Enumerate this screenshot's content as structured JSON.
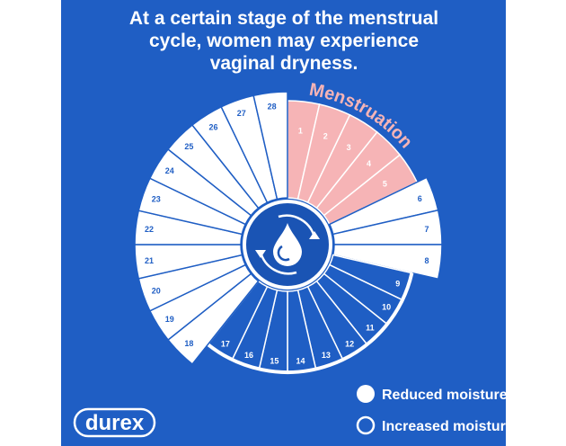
{
  "header": {
    "title_lines": [
      "At a certain stage of the menstrual",
      "cycle, women may experience",
      "vaginal dryness."
    ]
  },
  "wheel": {
    "groups": [
      {
        "label": "Menstruation",
        "fill": "#f6b4b6",
        "stroke": "#ffffff",
        "days": [
          1,
          2,
          3,
          4,
          5
        ]
      },
      {
        "fill": "#ffffff",
        "stroke": "#1f5ec4",
        "days": [
          6,
          7,
          8
        ]
      },
      {
        "fill": "#1f5ec4",
        "stroke": "#ffffff",
        "days": [
          9,
          10,
          11,
          12,
          13,
          14,
          15,
          16,
          17
        ]
      },
      {
        "fill": "#ffffff",
        "stroke": "#1f5ec4",
        "days": [
          18,
          19,
          20,
          21,
          22,
          23,
          24,
          25,
          26,
          27,
          28
        ]
      }
    ]
  },
  "legend": {
    "items": [
      {
        "label": "Reduced moisture",
        "filled": true
      },
      {
        "label": "Increased moisture",
        "filled": false
      }
    ]
  },
  "logo": {
    "text": "durex"
  }
}
